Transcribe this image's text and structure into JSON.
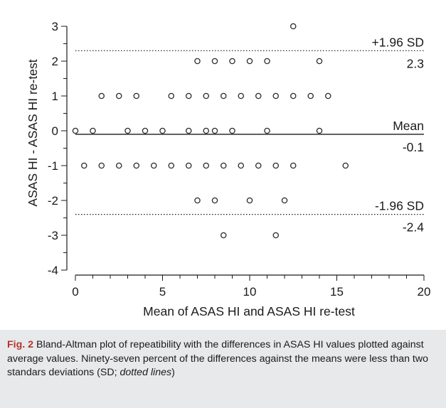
{
  "chart_data": {
    "type": "scatter",
    "title": "",
    "xlabel": "Mean of ASAS HI and ASAS HI re-test",
    "ylabel": "ASAS HI - ASAS HI re-test",
    "xlim": [
      0,
      20
    ],
    "ylim": [
      -4,
      3
    ],
    "x_ticks": [
      0,
      5,
      10,
      15,
      20
    ],
    "y_ticks": [
      -4,
      -3,
      -2,
      -1,
      0,
      1,
      2,
      3
    ],
    "grid": false,
    "reference_lines": [
      {
        "y": 2.3,
        "style": "dotted",
        "label": "+1.96 SD",
        "value_label": "2.3"
      },
      {
        "y": -0.1,
        "style": "solid",
        "label": "Mean",
        "value_label": "-0.1"
      },
      {
        "y": -2.4,
        "style": "dotted",
        "label": "-1.96 SD",
        "value_label": "-2.4"
      }
    ],
    "points": [
      {
        "x": 12.5,
        "y": 3
      },
      {
        "x": 7,
        "y": 2
      },
      {
        "x": 8,
        "y": 2
      },
      {
        "x": 9,
        "y": 2
      },
      {
        "x": 10,
        "y": 2
      },
      {
        "x": 11,
        "y": 2
      },
      {
        "x": 14,
        "y": 2
      },
      {
        "x": 1.5,
        "y": 1
      },
      {
        "x": 2.5,
        "y": 1
      },
      {
        "x": 3.5,
        "y": 1
      },
      {
        "x": 5.5,
        "y": 1
      },
      {
        "x": 6.5,
        "y": 1
      },
      {
        "x": 7.5,
        "y": 1
      },
      {
        "x": 8.5,
        "y": 1
      },
      {
        "x": 9.5,
        "y": 1
      },
      {
        "x": 10.5,
        "y": 1
      },
      {
        "x": 11.5,
        "y": 1
      },
      {
        "x": 12.5,
        "y": 1
      },
      {
        "x": 13.5,
        "y": 1
      },
      {
        "x": 14.5,
        "y": 1
      },
      {
        "x": 0,
        "y": 0
      },
      {
        "x": 1,
        "y": 0
      },
      {
        "x": 3,
        "y": 0
      },
      {
        "x": 4,
        "y": 0
      },
      {
        "x": 5,
        "y": 0
      },
      {
        "x": 6.5,
        "y": 0
      },
      {
        "x": 7.5,
        "y": 0
      },
      {
        "x": 8,
        "y": 0
      },
      {
        "x": 9,
        "y": 0
      },
      {
        "x": 11,
        "y": 0
      },
      {
        "x": 14,
        "y": 0
      },
      {
        "x": 0.5,
        "y": -1
      },
      {
        "x": 1.5,
        "y": -1
      },
      {
        "x": 2.5,
        "y": -1
      },
      {
        "x": 3.5,
        "y": -1
      },
      {
        "x": 4.5,
        "y": -1
      },
      {
        "x": 5.5,
        "y": -1
      },
      {
        "x": 6.5,
        "y": -1
      },
      {
        "x": 7.5,
        "y": -1
      },
      {
        "x": 8.5,
        "y": -1
      },
      {
        "x": 9.5,
        "y": -1
      },
      {
        "x": 10.5,
        "y": -1
      },
      {
        "x": 11.5,
        "y": -1
      },
      {
        "x": 12.5,
        "y": -1
      },
      {
        "x": 15.5,
        "y": -1
      },
      {
        "x": 7,
        "y": -2
      },
      {
        "x": 8,
        "y": -2
      },
      {
        "x": 10,
        "y": -2
      },
      {
        "x": 12,
        "y": -2
      },
      {
        "x": 8.5,
        "y": -3
      },
      {
        "x": 11.5,
        "y": -3
      }
    ]
  },
  "caption": {
    "label": "Fig. 2",
    "text": " Bland-Altman plot of repeatibility with the differences in ASAS HI values plotted against average values. Ninety-seven percent of the differences against the means were less than two standars deviations (SD; ",
    "italic_tail": "dotted lines",
    "closing": ")"
  },
  "colors": {
    "axis": "#1a1a1a",
    "marker_stroke": "#2b2b2b",
    "caption_background": "#e8e9eb",
    "caption_label": "#b5342d"
  }
}
